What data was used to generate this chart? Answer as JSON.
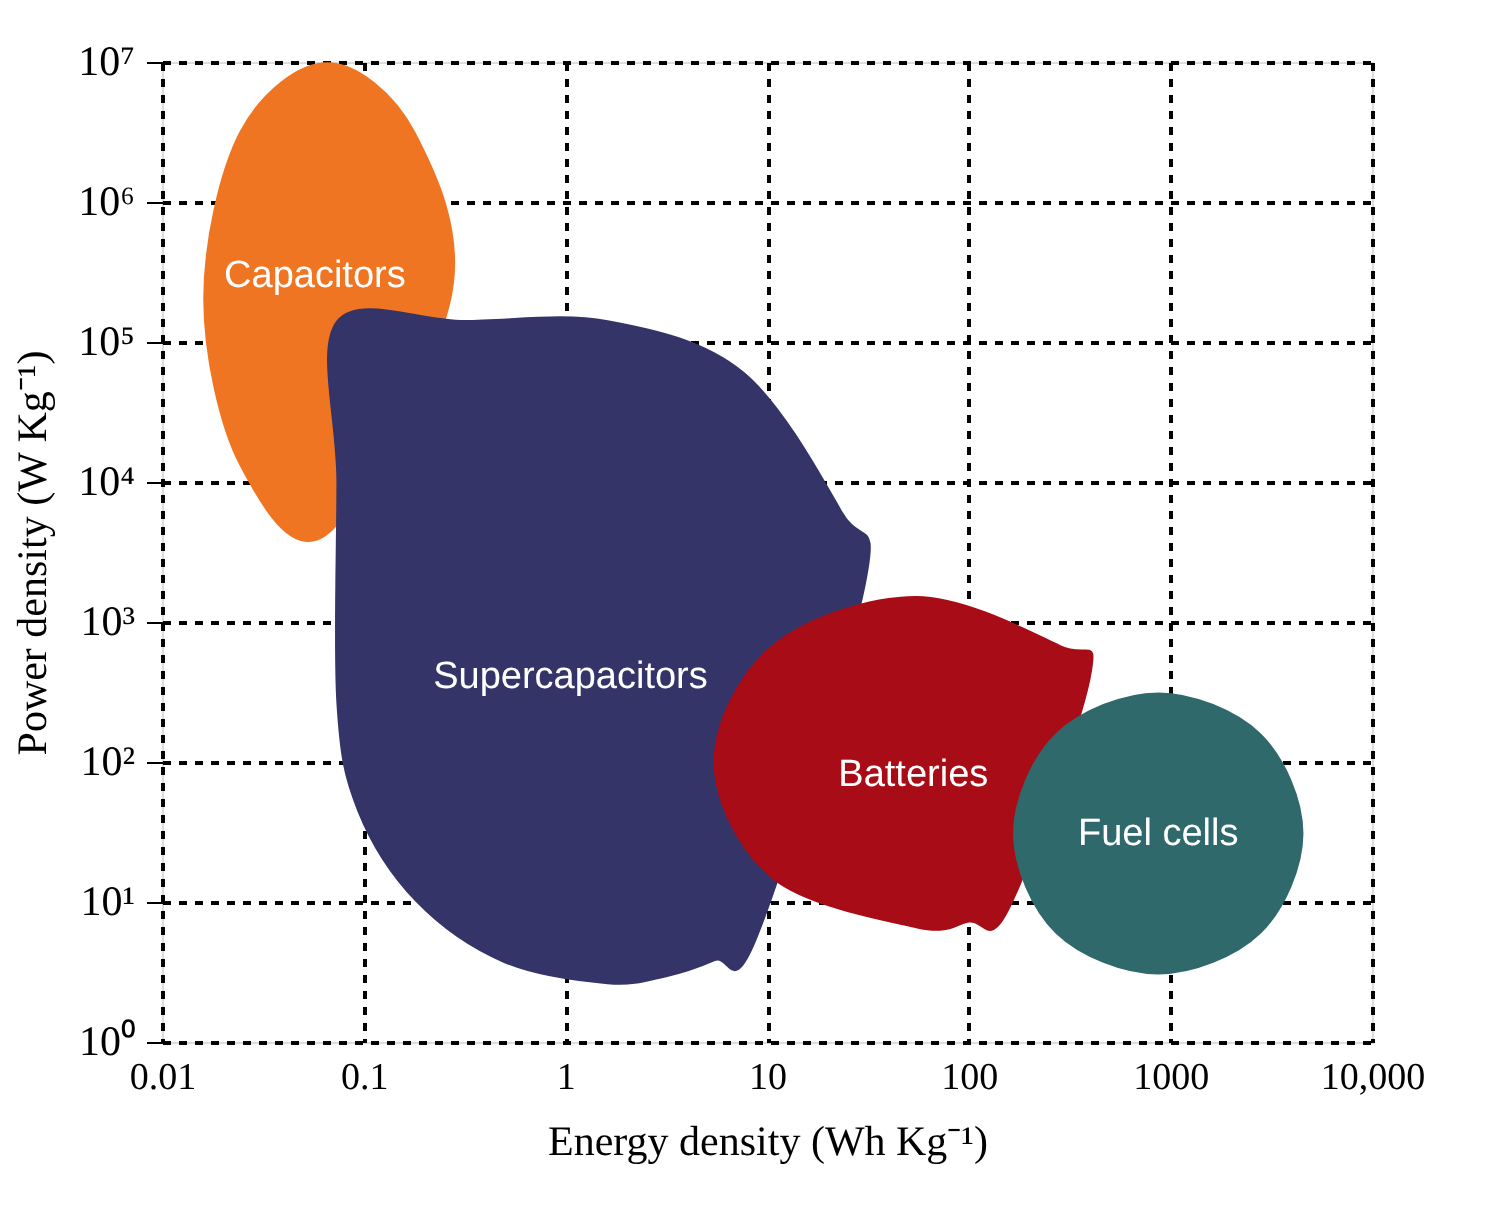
{
  "chart_data": {
    "type": "area",
    "xlabel": "Energy density (Wh Kg⁻¹)",
    "ylabel": "Power density (W Kg⁻¹)",
    "log": "xy",
    "grid": true,
    "line_style": "dashed",
    "xlim": [
      0.01,
      10000
    ],
    "xticks": [
      0.01,
      0.1,
      1,
      10,
      100,
      1000,
      {
        "value": 10000,
        "label": "10,000"
      }
    ],
    "ylim": [
      1,
      10000000
    ],
    "yticks": [
      {
        "value": 1,
        "label": "10⁰"
      },
      {
        "value": 10,
        "label": "10¹"
      },
      {
        "value": 100,
        "label": "10²"
      },
      {
        "value": 1000,
        "label": "10³"
      },
      {
        "value": 10000,
        "label": "10⁴"
      },
      {
        "value": 100000,
        "label": "10⁵"
      },
      {
        "value": 1000000,
        "label": "10⁶"
      },
      {
        "value": 10000000,
        "label": "10⁷"
      }
    ],
    "series": [
      {
        "name": "Capacitors",
        "color": "#f07522",
        "x": [
          0.269,
          0.178,
          0.066,
          0.0245,
          0.0162,
          0.0245,
          0.066
        ],
        "values": [
          204000,
          3160000,
          9800000,
          3160000,
          204000,
          13200,
          4270
        ]
      },
      {
        "name": "Supercapacitors",
        "color": "#353468",
        "x": [
          0.0741,
          0.316,
          1.62,
          7.59,
          23.4,
          30.5,
          8.9,
          5.5,
          3.16,
          1.62,
          0.498,
          0.182,
          0.0938,
          0.0741,
          0.0741
        ],
        "values": [
          141000,
          141000,
          141000,
          60800,
          6100,
          1840,
          5.65,
          3.84,
          2.95,
          2.63,
          3.73,
          10.2,
          45.2,
          263,
          10000
        ]
      },
      {
        "name": "Batteries",
        "color": "#a80c16",
        "x": [
          398,
          282,
          55,
          10.7,
          5.5,
          10.7,
          55,
          100,
          158
        ],
        "values": [
          398,
          676,
          1510,
          676,
          100,
          14.8,
          6.6,
          7.24,
          8.96
        ]
      },
      {
        "name": "Fuel cells",
        "color": "#30696b",
        "x": [
          4520,
          2790,
          871,
          272,
          168,
          272,
          871,
          2790
        ],
        "values": [
          30.9,
          158,
          309,
          158,
          30.9,
          6.03,
          3.09,
          6.03
        ]
      }
    ]
  }
}
